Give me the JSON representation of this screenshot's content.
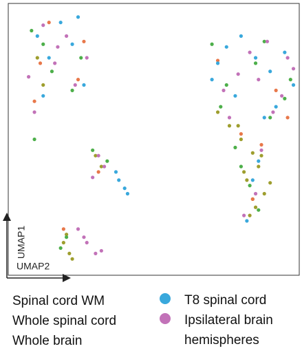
{
  "chart_data": {
    "type": "scatter",
    "x_label": "UMAP2",
    "y_label": "UMAP1",
    "xlim": [
      0,
      100
    ],
    "ylim": [
      0,
      100
    ],
    "series": [
      {
        "name": "Spinal cord WM",
        "color": "#9e9e2e",
        "x": [
          80,
          84,
          86,
          82,
          88,
          85,
          83,
          87,
          79,
          81,
          90,
          84,
          30,
          32,
          19,
          21,
          20,
          22,
          10,
          12,
          72,
          76
        ],
        "y": [
          50,
          45,
          40,
          35,
          30,
          25,
          22,
          44,
          55,
          38,
          34,
          28,
          44,
          40,
          12,
          8,
          15,
          6,
          80,
          70,
          60,
          55
        ]
      },
      {
        "name": "Whole spinal cord",
        "color": "#4daf4a",
        "x": [
          8,
          15,
          22,
          12,
          25,
          70,
          75,
          85,
          95,
          90,
          78,
          83,
          86,
          29,
          34,
          20,
          18,
          9,
          97,
          73,
          88,
          80
        ],
        "y": [
          90,
          75,
          68,
          85,
          80,
          85,
          70,
          78,
          65,
          58,
          47,
          33,
          24,
          46,
          42,
          14,
          10,
          50,
          72,
          62,
          86,
          40
        ]
      },
      {
        "name": "Whole brain",
        "color": "#e8784a",
        "x": [
          26,
          14,
          9,
          24,
          72,
          92,
          84,
          96,
          31,
          19,
          87,
          11,
          80
        ],
        "y": [
          86,
          93,
          64,
          72,
          79,
          68,
          28,
          58,
          38,
          17,
          48,
          78,
          52
        ]
      },
      {
        "name": "T8 spinal cord",
        "color": "#39a8dc",
        "x": [
          10,
          14,
          22,
          26,
          18,
          72,
          75,
          80,
          85,
          90,
          95,
          98,
          78,
          88,
          92,
          37,
          38,
          40,
          41,
          84,
          86,
          12,
          24,
          70,
          82
        ],
        "y": [
          88,
          80,
          85,
          70,
          93,
          78,
          84,
          88,
          80,
          75,
          82,
          70,
          66,
          58,
          62,
          38,
          35,
          32,
          30,
          35,
          42,
          66,
          95,
          72,
          20
        ]
      },
      {
        "name": "Ipsilateral brain hemispheres",
        "color": "#c272b8",
        "x": [
          7,
          12,
          16,
          20,
          23,
          27,
          9,
          74,
          79,
          83,
          89,
          94,
          98,
          76,
          86,
          91,
          31,
          33,
          29,
          24,
          27,
          30,
          32,
          26,
          81,
          85,
          17,
          87,
          96
        ],
        "y": [
          73,
          92,
          78,
          88,
          70,
          80,
          60,
          68,
          74,
          82,
          86,
          66,
          76,
          58,
          72,
          60,
          44,
          40,
          36,
          17,
          12,
          8,
          9,
          14,
          22,
          30,
          84,
          46,
          80
        ]
      }
    ]
  }
}
